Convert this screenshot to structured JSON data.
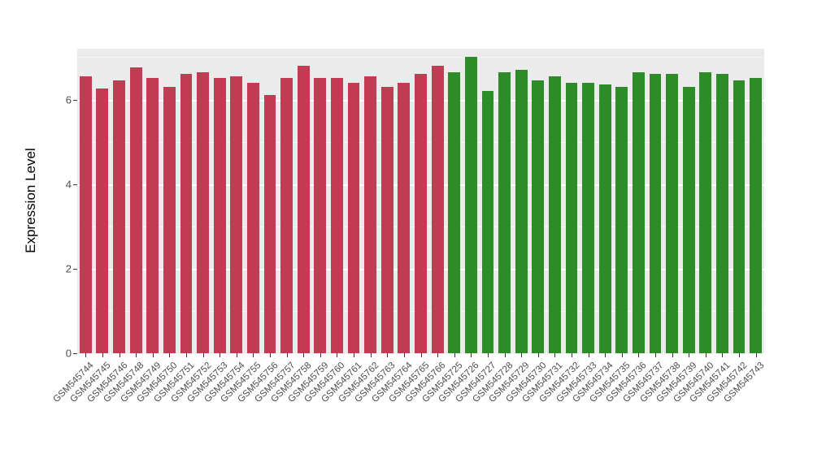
{
  "chart_data": {
    "type": "bar",
    "title": "",
    "xlabel": "",
    "ylabel": "Expression Level",
    "ylim": [
      0,
      7.2
    ],
    "yticks": [
      0,
      2,
      4,
      6
    ],
    "grid": true,
    "legend": "none",
    "plot_background": "#EBEBEB",
    "groups": [
      {
        "name": "group-red",
        "color": "#C13B52",
        "categories": [
          "GSM545744",
          "GSM545745",
          "GSM545746",
          "GSM545748",
          "GSM545749",
          "GSM545750",
          "GSM545751",
          "GSM545752",
          "GSM545753",
          "GSM545754",
          "GSM545755",
          "GSM545756",
          "GSM545757",
          "GSM545758",
          "GSM545759",
          "GSM545760",
          "GSM545761",
          "GSM545762",
          "GSM545763",
          "GSM545764",
          "GSM545765",
          "GSM545766"
        ],
        "values": [
          6.55,
          6.25,
          6.45,
          6.75,
          6.5,
          6.3,
          6.6,
          6.65,
          6.5,
          6.55,
          6.4,
          6.1,
          6.5,
          6.8,
          6.5,
          6.5,
          6.4,
          6.55,
          6.3,
          6.4,
          6.6,
          6.8
        ]
      },
      {
        "name": "group-green",
        "color": "#2B8C28",
        "categories": [
          "GSM545725",
          "GSM545726",
          "GSM545727",
          "GSM545728",
          "GSM545729",
          "GSM545730",
          "GSM545731",
          "GSM545732",
          "GSM545733",
          "GSM545734",
          "GSM545735",
          "GSM545736",
          "GSM545737",
          "GSM545738",
          "GSM545739",
          "GSM545740",
          "GSM545741",
          "GSM545742",
          "GSM545743"
        ],
        "values": [
          6.65,
          7.0,
          6.2,
          6.65,
          6.7,
          6.45,
          6.55,
          6.4,
          6.4,
          6.35,
          6.3,
          6.65,
          6.6,
          6.6,
          6.3,
          6.65,
          6.6,
          6.45,
          6.5
        ]
      }
    ]
  }
}
